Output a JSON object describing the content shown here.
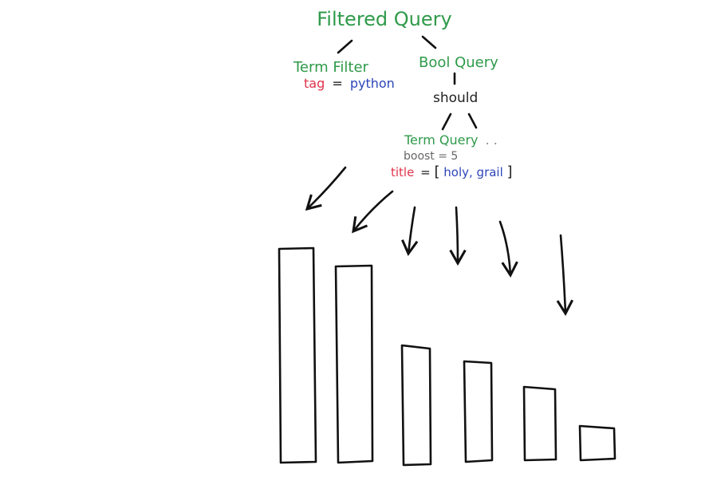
{
  "colors": {
    "node": "#2e9a4a",
    "field": "#e0334a",
    "value": "#2d45b8",
    "keyword": "#222222",
    "param": "#666666",
    "ink": "#111111"
  },
  "tree": {
    "root": "Filtered Query",
    "term_filter": {
      "label": "Term Filter",
      "field": "tag",
      "eq": "=",
      "value": "python"
    },
    "bool_query": {
      "label": "Bool Query",
      "clause": "should"
    },
    "term_query": {
      "label": "Term Query",
      "more": ". .",
      "boost": "boost = 5",
      "field": "title",
      "eq": "=",
      "value_open": "[",
      "value": "holy, grail",
      "value_close": "]"
    }
  }
}
